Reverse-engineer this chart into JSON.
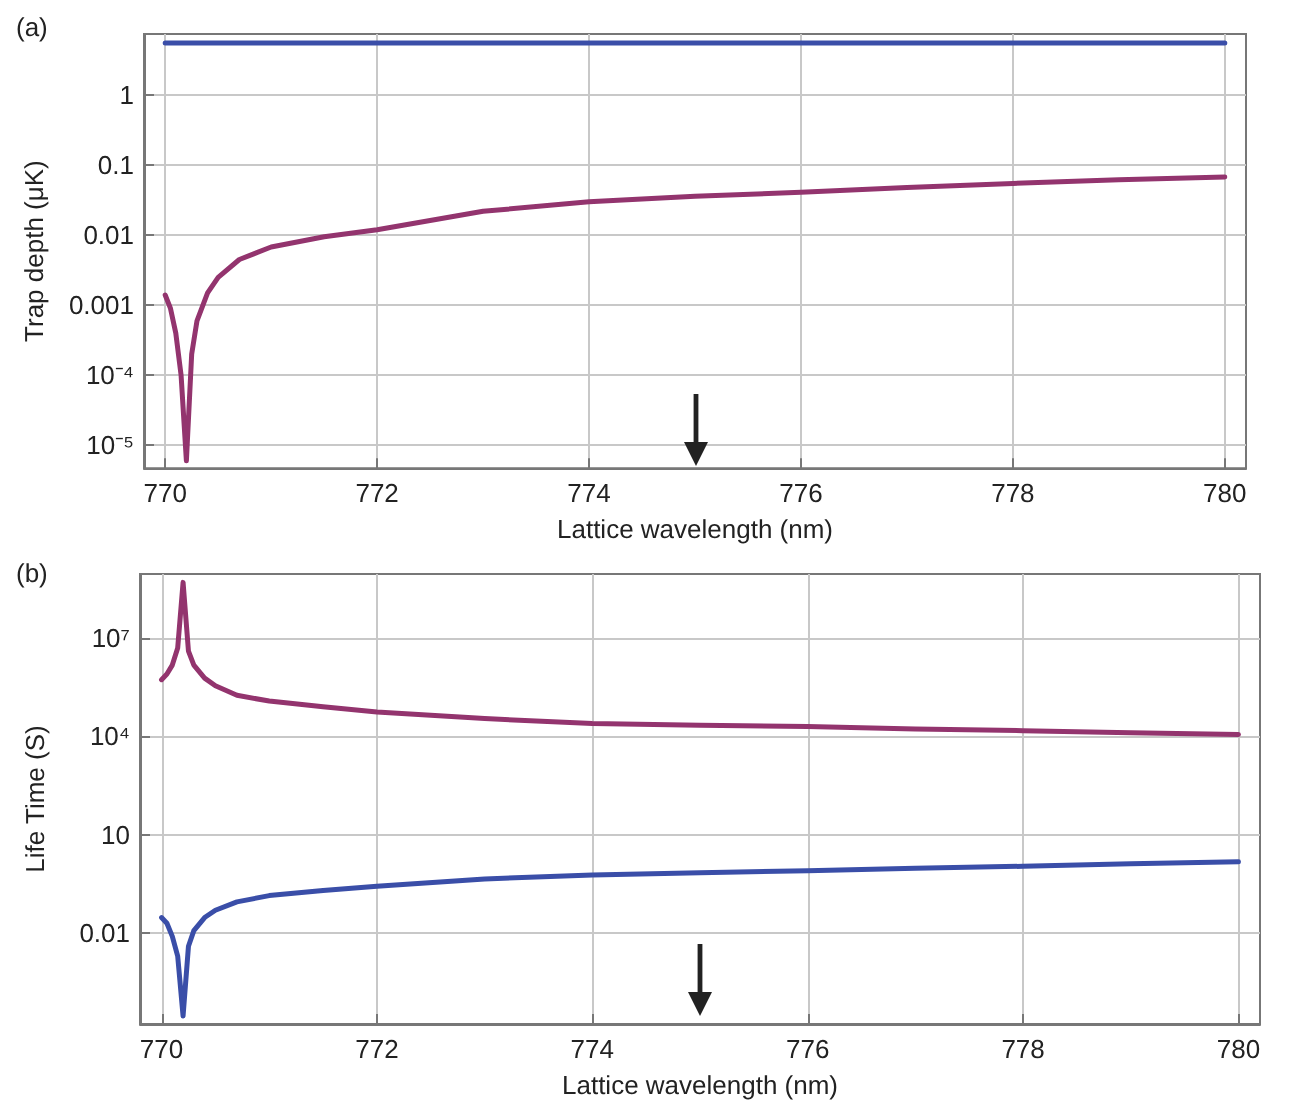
{
  "chart_data": [
    {
      "type": "line",
      "title": "(a)",
      "xlabel": "Lattice wavelength (nm)",
      "ylabel": "Trap depth (μK)",
      "log": "y",
      "grid": true,
      "marker": "none",
      "line_style": "solid",
      "xlim": [
        769.8,
        780.2
      ],
      "xticks": [
        770,
        772,
        774,
        776,
        778,
        780
      ],
      "ylim": [
        4.7e-06,
        7.5
      ],
      "yticks": [
        {
          "value": 1e-05,
          "label": "10⁻⁵"
        },
        {
          "value": 0.0001,
          "label": "10⁻⁴"
        },
        0.001,
        0.01,
        0.1,
        1
      ],
      "series": [
        {
          "color": "#3a4ea8",
          "x": [
            770,
            780
          ],
          "values": [
            5.6,
            5.6
          ]
        },
        {
          "color": "#93346e",
          "x": [
            770,
            770.05,
            770.1,
            770.15,
            770.2,
            770.25,
            770.3,
            770.4,
            770.5,
            770.7,
            771,
            771.5,
            772,
            773,
            774,
            775,
            776,
            777,
            778,
            779,
            780
          ],
          "values": [
            0.0014,
            0.0009,
            0.0004,
            0.0001,
            6e-06,
            0.0002,
            0.0006,
            0.0015,
            0.0025,
            0.0045,
            0.0068,
            0.0095,
            0.012,
            0.022,
            0.03,
            0.036,
            0.041,
            0.048,
            0.055,
            0.062,
            0.068
          ]
        }
      ]
    },
    {
      "type": "line",
      "title": "(b)",
      "xlabel": "Lattice wavelength (nm)",
      "ylabel": "Life Time (S)",
      "log": "y",
      "grid": true,
      "marker": "none",
      "line_style": "solid",
      "xlim": [
        769.8,
        780.2
      ],
      "xticks": [
        770,
        772,
        774,
        776,
        778,
        780
      ],
      "ylim": [
        1.7e-05,
        900000000
      ],
      "yticks": [
        0.01,
        10,
        {
          "value": 10000,
          "label": "10⁴"
        },
        {
          "value": 10000000,
          "label": "10⁷"
        }
      ],
      "series": [
        {
          "color": "#93346e",
          "x": [
            770,
            770.05,
            770.1,
            770.15,
            770.2,
            770.25,
            770.3,
            770.4,
            770.5,
            770.7,
            771,
            771.5,
            772,
            773,
            774,
            775,
            776,
            777,
            778,
            779,
            780
          ],
          "values": [
            540000,
            800000,
            1500000,
            5000000,
            500000000,
            4000000,
            1500000,
            600000,
            350000,
            180000,
            120000,
            80000,
            56000,
            35000,
            25000,
            22000,
            20000,
            17000,
            15000,
            13000,
            11500
          ]
        },
        {
          "color": "#3a4ea8",
          "x": [
            770,
            770.05,
            770.1,
            770.15,
            770.2,
            770.25,
            770.3,
            770.4,
            770.5,
            770.7,
            771,
            771.5,
            772,
            773,
            774,
            775,
            776,
            777,
            778,
            779,
            780
          ],
          "values": [
            0.03,
            0.02,
            0.008,
            0.002,
            3e-05,
            0.004,
            0.012,
            0.03,
            0.05,
            0.09,
            0.14,
            0.2,
            0.27,
            0.45,
            0.6,
            0.7,
            0.8,
            0.95,
            1.1,
            1.3,
            1.5
          ]
        }
      ]
    }
  ]
}
